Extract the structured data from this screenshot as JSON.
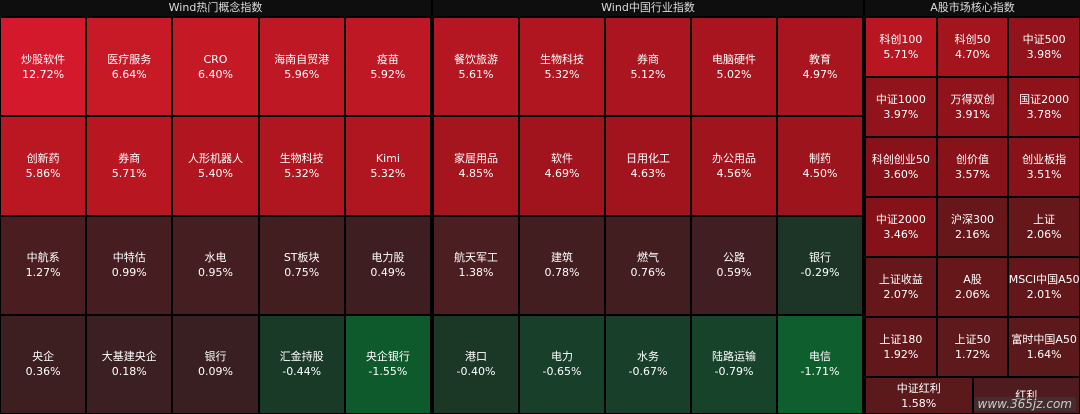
{
  "panels": [
    {
      "title": "Wind热门概念指数",
      "cols": 5,
      "rows": [
        [
          {
            "name": "炒股软件",
            "value": "12.72%",
            "color": "#d3192b"
          },
          {
            "name": "医疗服务",
            "value": "6.64%",
            "color": "#c81a26"
          },
          {
            "name": "CRO",
            "value": "6.40%",
            "color": "#c61926"
          },
          {
            "name": "海南自贸港",
            "value": "5.96%",
            "color": "#bd1824"
          },
          {
            "name": "疫苗",
            "value": "5.92%",
            "color": "#be1824"
          }
        ],
        [
          {
            "name": "创新药",
            "value": "5.86%",
            "color": "#bb1722"
          },
          {
            "name": "券商",
            "value": "5.71%",
            "color": "#b81722"
          },
          {
            "name": "人形机器人",
            "value": "5.40%",
            "color": "#b11620"
          },
          {
            "name": "生物科技",
            "value": "5.32%",
            "color": "#b0161f"
          },
          {
            "name": "Kimi",
            "value": "5.32%",
            "color": "#b0161f"
          }
        ],
        [
          {
            "name": "中航系",
            "value": "1.27%",
            "color": "#4a1e21"
          },
          {
            "name": "中特估",
            "value": "0.99%",
            "color": "#461e21"
          },
          {
            "name": "水电",
            "value": "0.95%",
            "color": "#451e21"
          },
          {
            "name": "ST板块",
            "value": "0.75%",
            "color": "#421e21"
          },
          {
            "name": "电力股",
            "value": "0.49%",
            "color": "#3f1e21"
          }
        ],
        [
          {
            "name": "央企",
            "value": "0.36%",
            "color": "#3d1f22"
          },
          {
            "name": "大基建央企",
            "value": "0.18%",
            "color": "#3b1f22"
          },
          {
            "name": "银行",
            "value": "0.09%",
            "color": "#3a1f22"
          },
          {
            "name": "汇金持股",
            "value": "-0.44%",
            "color": "#1a3a28"
          },
          {
            "name": "央企银行",
            "value": "-1.55%",
            "color": "#0f5a2c"
          }
        ]
      ]
    },
    {
      "title": "Wind中国行业指数",
      "cols": 5,
      "rows": [
        [
          {
            "name": "餐饮旅游",
            "value": "5.61%",
            "color": "#b51722"
          },
          {
            "name": "生物科技",
            "value": "5.32%",
            "color": "#b0161f"
          },
          {
            "name": "券商",
            "value": "5.12%",
            "color": "#ab151f"
          },
          {
            "name": "电脑硬件",
            "value": "5.02%",
            "color": "#a9151e"
          },
          {
            "name": "教育",
            "value": "4.97%",
            "color": "#a8151e"
          }
        ],
        [
          {
            "name": "家居用品",
            "value": "4.85%",
            "color": "#a5151e"
          },
          {
            "name": "软件",
            "value": "4.69%",
            "color": "#a2141d"
          },
          {
            "name": "日用化工",
            "value": "4.63%",
            "color": "#a1141d"
          },
          {
            "name": "办公用品",
            "value": "4.56%",
            "color": "#9f141d"
          },
          {
            "name": "制药",
            "value": "4.50%",
            "color": "#9e141c"
          }
        ],
        [
          {
            "name": "航天军工",
            "value": "1.38%",
            "color": "#4b1e21"
          },
          {
            "name": "建筑",
            "value": "0.78%",
            "color": "#421e21"
          },
          {
            "name": "燃气",
            "value": "0.76%",
            "color": "#421e21"
          },
          {
            "name": "公路",
            "value": "0.59%",
            "color": "#401e21"
          },
          {
            "name": "银行",
            "value": "-0.29%",
            "color": "#1c3527"
          }
        ],
        [
          {
            "name": "港口",
            "value": "-0.40%",
            "color": "#1b3827"
          },
          {
            "name": "电力",
            "value": "-0.65%",
            "color": "#183f29"
          },
          {
            "name": "水务",
            "value": "-0.67%",
            "color": "#183f29"
          },
          {
            "name": "陆路运输",
            "value": "-0.79%",
            "color": "#17432a"
          },
          {
            "name": "电信",
            "value": "-1.71%",
            "color": "#0f5e2d"
          }
        ]
      ]
    },
    {
      "title": "A股市场核心指数",
      "cols": 3,
      "rows": [
        [
          {
            "name": "科创100",
            "value": "5.71%",
            "color": "#b81722"
          },
          {
            "name": "科创50",
            "value": "4.70%",
            "color": "#a3141d"
          },
          {
            "name": "中证500",
            "value": "3.98%",
            "color": "#92131b"
          }
        ],
        [
          {
            "name": "中证1000",
            "value": "3.97%",
            "color": "#91131b"
          },
          {
            "name": "万得双创",
            "value": "3.91%",
            "color": "#90131b"
          },
          {
            "name": "国证2000",
            "value": "3.78%",
            "color": "#8d121a"
          }
        ],
        [
          {
            "name": "科创创业50",
            "value": "3.60%",
            "color": "#89121a"
          },
          {
            "name": "创价值",
            "value": "3.57%",
            "color": "#881219"
          },
          {
            "name": "创业板指",
            "value": "3.51%",
            "color": "#871219"
          }
        ],
        [
          {
            "name": "中证2000",
            "value": "3.46%",
            "color": "#861219"
          },
          {
            "name": "沪深300",
            "value": "2.16%",
            "color": "#671719"
          },
          {
            "name": "上证",
            "value": "2.06%",
            "color": "#65171a"
          }
        ],
        [
          {
            "name": "上证收益",
            "value": "2.07%",
            "color": "#65171a"
          },
          {
            "name": "A股",
            "value": "2.06%",
            "color": "#65171a"
          },
          {
            "name": "MSCI中国A50",
            "value": "2.01%",
            "color": "#64171a"
          }
        ],
        [
          {
            "name": "上证180",
            "value": "1.92%",
            "color": "#62181a"
          },
          {
            "name": "上证50",
            "value": "1.72%",
            "color": "#5d191b"
          },
          {
            "name": "富时中国A50",
            "value": "1.64%",
            "color": "#5b191b"
          }
        ],
        [
          {
            "name": "中证红利",
            "value": "1.58%",
            "color": "#5a1a1c"
          },
          {
            "name": "红利",
            "value": "",
            "color": "#4e1c1f"
          }
        ]
      ]
    }
  ],
  "watermark": "www.365jz.com"
}
